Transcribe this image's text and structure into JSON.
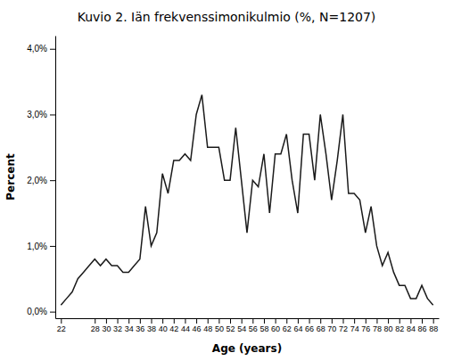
{
  "chart_data": {
    "type": "line",
    "title": "Kuvio 2. Iän frekvenssimonikulmio (%, N=1207)",
    "xlabel": "Age (years)",
    "ylabel": "Percent",
    "color": "#1a1a1a",
    "grid": false,
    "xlim": [
      21,
      89
    ],
    "ylim": [
      -0.001,
      0.042
    ],
    "xticks": [
      22,
      28,
      30,
      32,
      34,
      36,
      38,
      40,
      42,
      44,
      46,
      48,
      50,
      52,
      54,
      56,
      58,
      60,
      62,
      64,
      66,
      68,
      70,
      72,
      74,
      76,
      78,
      80,
      82,
      84,
      86,
      88
    ],
    "yticks": [
      {
        "value": 0.0,
        "label": "0,0%"
      },
      {
        "value": 0.01,
        "label": "1,0%"
      },
      {
        "value": 0.02,
        "label": "2,0%"
      },
      {
        "value": 0.03,
        "label": "3,0%"
      },
      {
        "value": 0.04,
        "label": "4,0%"
      }
    ],
    "x": [
      22,
      23,
      24,
      25,
      26,
      27,
      28,
      29,
      30,
      31,
      32,
      33,
      34,
      35,
      36,
      37,
      38,
      39,
      40,
      41,
      42,
      43,
      44,
      45,
      46,
      47,
      48,
      49,
      50,
      51,
      52,
      53,
      54,
      55,
      56,
      57,
      58,
      59,
      60,
      61,
      62,
      63,
      64,
      65,
      66,
      67,
      68,
      69,
      70,
      71,
      72,
      73,
      74,
      75,
      76,
      77,
      78,
      79,
      80,
      81,
      82,
      83,
      84,
      85,
      86,
      87,
      88
    ],
    "values": [
      0.001,
      0.002,
      0.003,
      0.005,
      0.006,
      0.007,
      0.008,
      0.007,
      0.008,
      0.007,
      0.007,
      0.006,
      0.006,
      0.007,
      0.008,
      0.016,
      0.01,
      0.012,
      0.021,
      0.018,
      0.023,
      0.023,
      0.024,
      0.023,
      0.03,
      0.033,
      0.025,
      0.025,
      0.025,
      0.02,
      0.02,
      0.028,
      0.02,
      0.012,
      0.02,
      0.019,
      0.024,
      0.015,
      0.024,
      0.024,
      0.027,
      0.02,
      0.015,
      0.027,
      0.027,
      0.02,
      0.03,
      0.024,
      0.017,
      0.023,
      0.03,
      0.018,
      0.018,
      0.017,
      0.012,
      0.016,
      0.01,
      0.007,
      0.009,
      0.006,
      0.004,
      0.004,
      0.002,
      0.002,
      0.004,
      0.002,
      0.001
    ]
  }
}
